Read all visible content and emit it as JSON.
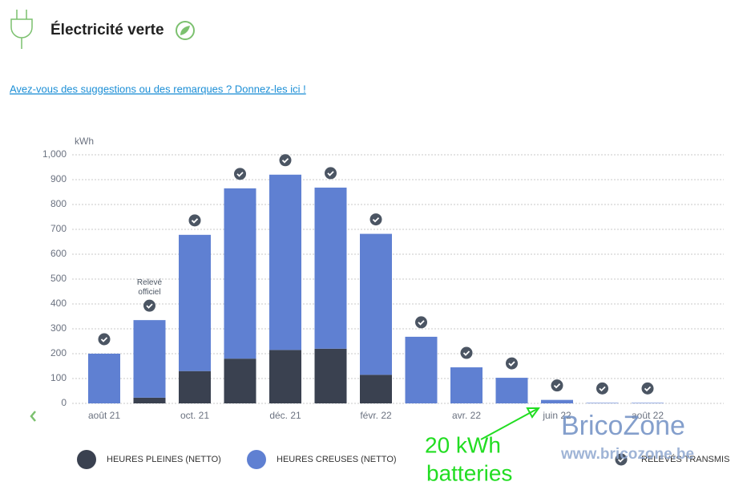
{
  "header": {
    "title": "Électricité verte",
    "feedback_link": "Avez-vous des suggestions ou des remarques ? Donnez-les ici !"
  },
  "chart_data": {
    "type": "stacked-bar",
    "unit_label": "kWh",
    "categories": [
      "août 21",
      null,
      "oct. 21",
      null,
      "déc. 21",
      null,
      "févr. 22",
      null,
      "avr. 22",
      null,
      "juin 22",
      null,
      "août 22"
    ],
    "series": [
      {
        "name": "HEURES PLEINES (NETTO)",
        "color": "#3a4150",
        "values": [
          0,
          23,
          130,
          180,
          215,
          220,
          115,
          0,
          0,
          0,
          0,
          0,
          0
        ]
      },
      {
        "name": "HEURES CREUSES (NETTO)",
        "color": "#5f80d2",
        "values": [
          200,
          312,
          548,
          685,
          705,
          648,
          567,
          268,
          145,
          103,
          14,
          2,
          2
        ]
      }
    ],
    "ylim": [
      0,
      1000
    ],
    "yticks": [
      0,
      100,
      200,
      300,
      400,
      500,
      600,
      700,
      800,
      900,
      {
        "value": 1000,
        "label": "1,000"
      }
    ],
    "grid": true,
    "annotation": [
      "Relevé",
      "officiel"
    ],
    "readings_legend": "RELEVÉS TRANSMIS"
  },
  "overlay": {
    "note": [
      "20 kWh",
      "batteries"
    ],
    "watermark": [
      "BricoZone",
      "www.bricozone.be"
    ]
  }
}
